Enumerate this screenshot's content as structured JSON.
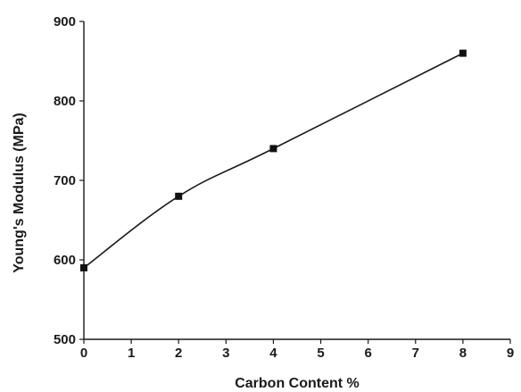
{
  "chart_data": {
    "type": "line",
    "xlabel": "Carbon Content %",
    "ylabel": "Young's Modulus (MPa)",
    "xlim": [
      0,
      9
    ],
    "ylim": [
      500,
      900
    ],
    "x_ticks": [
      0,
      1,
      2,
      3,
      4,
      5,
      6,
      7,
      8,
      9
    ],
    "y_ticks": [
      500,
      600,
      700,
      800,
      900
    ],
    "grid": false,
    "series": [
      {
        "x": [
          0,
          2,
          4,
          8
        ],
        "y": [
          590,
          680,
          740,
          860
        ],
        "marker": "square",
        "smooth": true
      }
    ],
    "colors": {
      "line": "#1a1a1a",
      "marker": "#111111",
      "axis": "#1a1a1a"
    }
  }
}
